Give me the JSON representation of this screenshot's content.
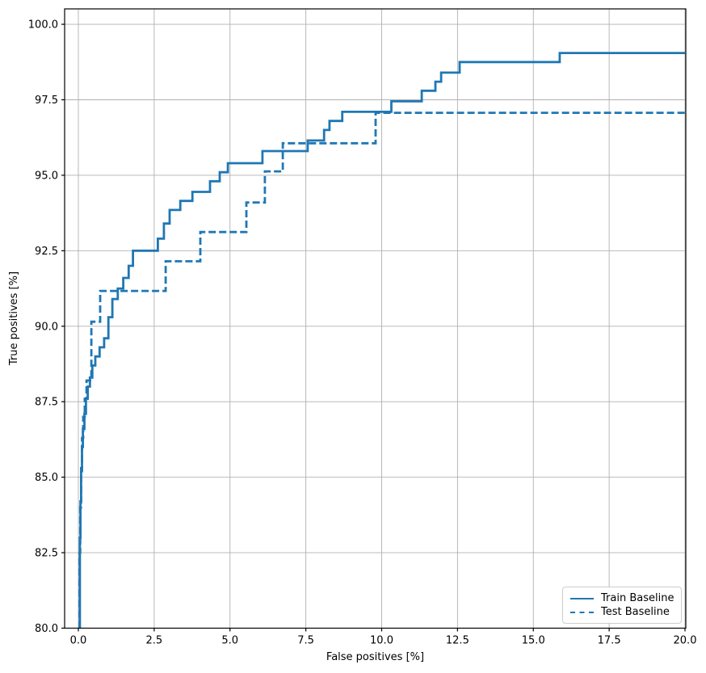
{
  "chart_data": {
    "type": "line",
    "subtype": "step-roc",
    "title": "",
    "xlabel": "False positives [%]",
    "ylabel": "True positives [%]",
    "grid": true,
    "legend_position": "lower right",
    "line_color": "#1f77b4",
    "grid_color": "#b0b0b0",
    "xlim": [
      -0.4527,
      20.0266
    ],
    "ylim": [
      80.0,
      100.51
    ],
    "xticks": [
      0.0,
      2.5,
      5.0,
      7.5,
      10.0,
      12.5,
      15.0,
      17.5,
      20.0
    ],
    "xtick_labels": [
      "0.0",
      "2.5",
      "5.0",
      "7.5",
      "10.0",
      "12.5",
      "15.0",
      "17.5",
      "20.0"
    ],
    "yticks": [
      80.0,
      82.5,
      85.0,
      87.5,
      90.0,
      92.5,
      95.0,
      97.5,
      100.0
    ],
    "ytick_labels": [
      "80.0",
      "82.5",
      "85.0",
      "87.5",
      "90.0",
      "92.5",
      "95.0",
      "97.5",
      "100.0"
    ],
    "series": [
      {
        "name": "Train Baseline",
        "style": "solid",
        "y_start": 80.0,
        "x_end": 20.0,
        "step_points": [
          [
            0.05,
            83.0
          ],
          [
            0.07,
            84.2
          ],
          [
            0.09,
            85.2
          ],
          [
            0.12,
            86.0
          ],
          [
            0.15,
            86.6
          ],
          [
            0.2,
            87.1
          ],
          [
            0.25,
            87.6
          ],
          [
            0.31,
            88.0
          ],
          [
            0.38,
            88.3
          ],
          [
            0.46,
            88.7
          ],
          [
            0.56,
            89.0
          ],
          [
            0.7,
            89.3
          ],
          [
            0.85,
            89.6
          ],
          [
            0.99,
            90.3
          ],
          [
            1.12,
            90.9
          ],
          [
            1.3,
            91.25
          ],
          [
            1.48,
            91.6
          ],
          [
            1.66,
            92.0
          ],
          [
            1.8,
            92.5
          ],
          [
            2.62,
            92.9
          ],
          [
            2.82,
            93.4
          ],
          [
            3.01,
            93.85
          ],
          [
            3.36,
            94.15
          ],
          [
            3.76,
            94.45
          ],
          [
            4.34,
            94.8
          ],
          [
            4.66,
            95.1
          ],
          [
            4.93,
            95.4
          ],
          [
            6.07,
            95.8
          ],
          [
            7.56,
            96.15
          ],
          [
            8.1,
            96.5
          ],
          [
            8.28,
            96.8
          ],
          [
            8.7,
            97.1
          ],
          [
            10.32,
            97.45
          ],
          [
            11.32,
            97.8
          ],
          [
            11.77,
            98.1
          ],
          [
            11.96,
            98.4
          ],
          [
            12.57,
            98.75
          ],
          [
            15.87,
            99.05
          ]
        ]
      },
      {
        "name": "Test Baseline",
        "style": "dashed",
        "y_start": 80.0,
        "x_end": 20.0,
        "step_points": [
          [
            0.04,
            82.5
          ],
          [
            0.06,
            84.0
          ],
          [
            0.09,
            85.3
          ],
          [
            0.12,
            86.3
          ],
          [
            0.16,
            87.0
          ],
          [
            0.21,
            87.6
          ],
          [
            0.27,
            88.2
          ],
          [
            0.43,
            90.15
          ],
          [
            0.72,
            91.17
          ],
          [
            2.88,
            92.15
          ],
          [
            4.02,
            93.12
          ],
          [
            5.54,
            94.1
          ],
          [
            6.15,
            95.13
          ],
          [
            6.74,
            96.06
          ],
          [
            9.8,
            97.07
          ]
        ]
      }
    ]
  },
  "legend": {
    "items": [
      {
        "label": "Train Baseline",
        "style": "solid"
      },
      {
        "label": "Test Baseline",
        "style": "dashed"
      }
    ]
  }
}
